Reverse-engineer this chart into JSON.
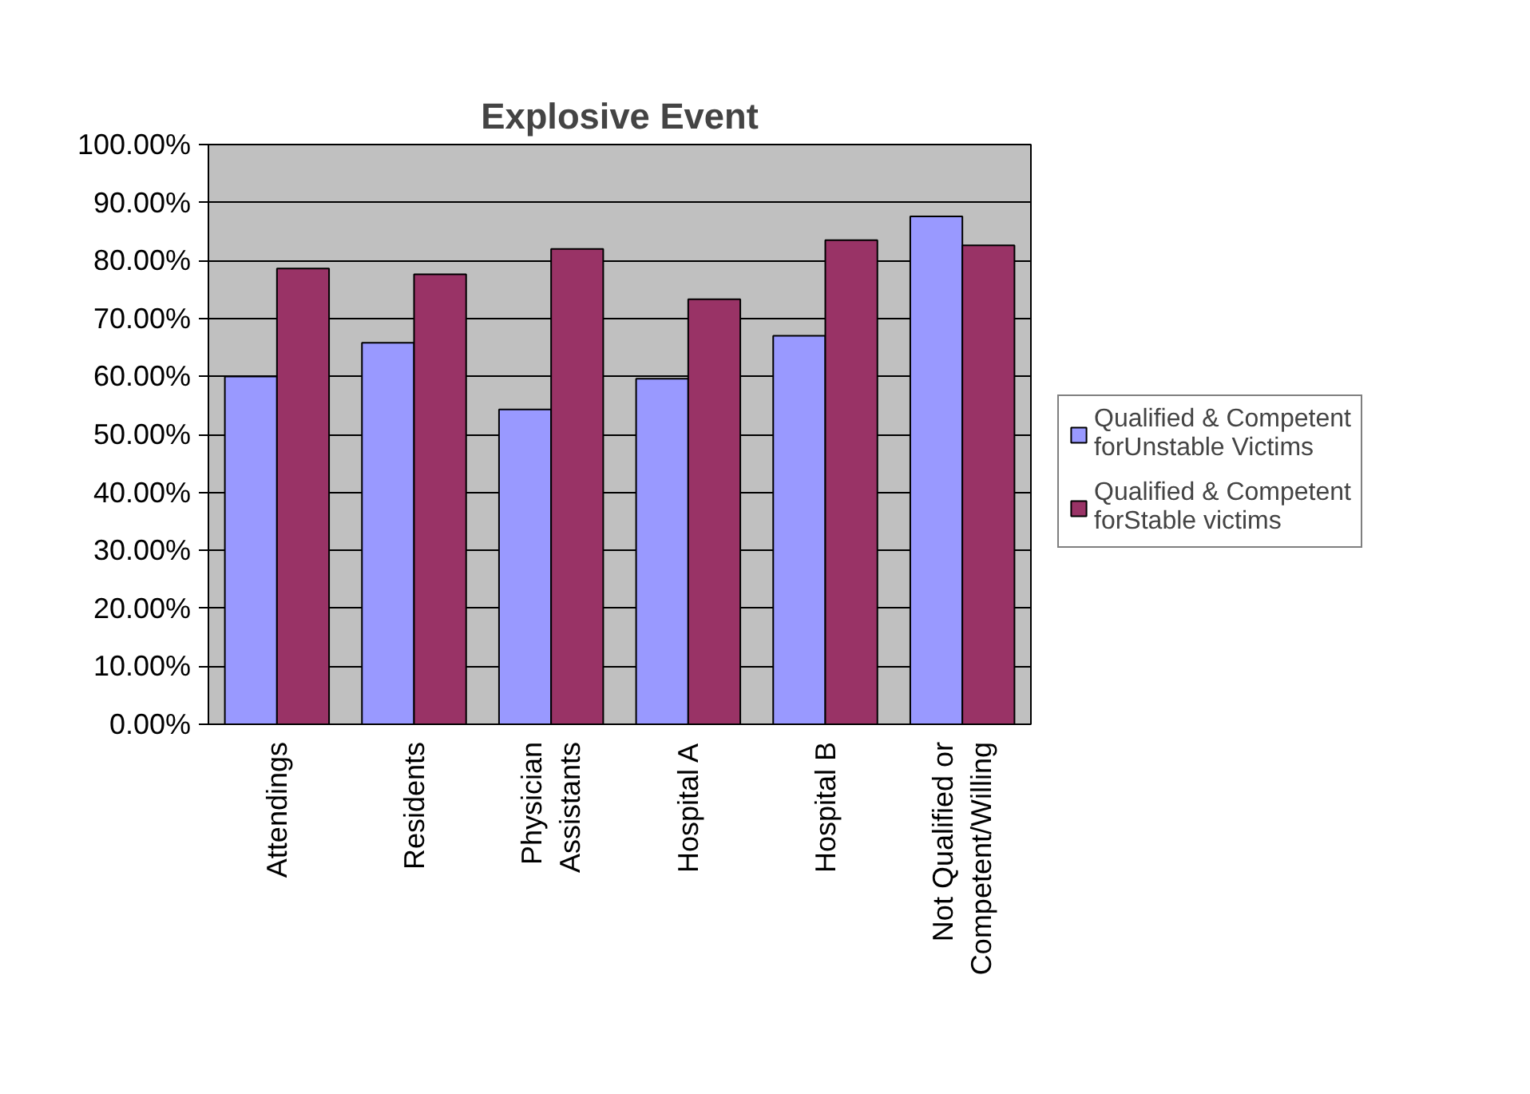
{
  "chart_data": {
    "type": "bar",
    "title": "Explosive Event",
    "categories": [
      "Attendings",
      "Residents",
      "Physician\nAssistants",
      "Hospital A",
      "Hospital B",
      "Not Qualified or\nCompetent/Willing"
    ],
    "series": [
      {
        "name": "Qualified & Competent forUnstable Victims",
        "color": "#9999ff",
        "values": [
          60,
          65.8,
          54.3,
          59.6,
          67,
          87.6
        ]
      },
      {
        "name": "Qualified & Competent forStable victims",
        "color": "#993366",
        "values": [
          78.6,
          77.6,
          82,
          73.3,
          83.5,
          82.6
        ]
      }
    ],
    "ylim": [
      0,
      100
    ],
    "yticks": [
      {
        "value": 0,
        "label": "0.00%"
      },
      {
        "value": 10,
        "label": "10.00%"
      },
      {
        "value": 20,
        "label": "20.00%"
      },
      {
        "value": 30,
        "label": "30.00%"
      },
      {
        "value": 40,
        "label": "40.00%"
      },
      {
        "value": 50,
        "label": "50.00%"
      },
      {
        "value": 60,
        "label": "60.00%"
      },
      {
        "value": 70,
        "label": "70.00%"
      },
      {
        "value": 80,
        "label": "80.00%"
      },
      {
        "value": 90,
        "label": "90.00%"
      },
      {
        "value": 100,
        "label": "100.00%"
      }
    ],
    "grid": "y",
    "legend": "right"
  }
}
